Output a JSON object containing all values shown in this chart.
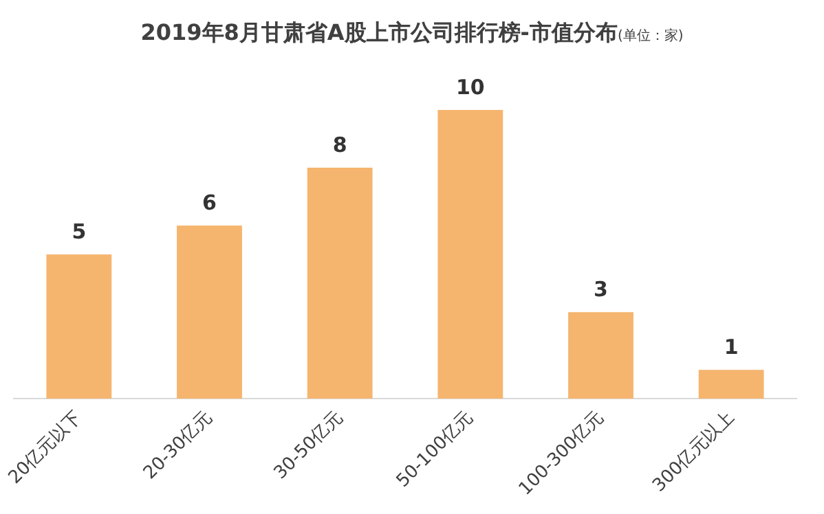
{
  "chart_data": {
    "type": "bar",
    "title": "2019年8月甘肃省A股上市公司排行榜-市值分布",
    "subtitle": "(单位：家)",
    "categories": [
      "20亿元以下",
      "20-30亿元",
      "30-50亿元",
      "50-100亿元",
      "100-300亿元",
      "300亿元以上"
    ],
    "values": [
      5,
      6,
      8,
      10,
      3,
      1
    ],
    "color": "#f5b56e",
    "data_labels": true,
    "grid": false,
    "legend": false
  }
}
